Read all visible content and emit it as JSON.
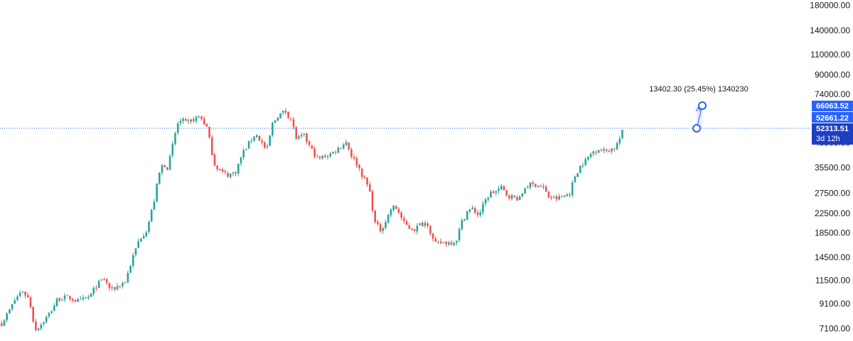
{
  "chart_data": {
    "type": "candlestick",
    "y_scale": "log",
    "ylim": [
      6500,
      190000
    ],
    "y_ticks": [
      {
        "value": 180000,
        "label": "180000.00"
      },
      {
        "value": 140000,
        "label": "140000.00"
      },
      {
        "value": 110000,
        "label": "110000.00"
      },
      {
        "value": 90000,
        "label": "90000.00"
      },
      {
        "value": 74000,
        "label": "74000.00"
      },
      {
        "value": 45500,
        "label": "45500.00"
      },
      {
        "value": 35500,
        "label": "35500.00"
      },
      {
        "value": 27500,
        "label": "27500.00"
      },
      {
        "value": 22500,
        "label": "22500.00"
      },
      {
        "value": 18500,
        "label": "18500.00"
      },
      {
        "value": 14500,
        "label": "14500.00"
      },
      {
        "value": 11500,
        "label": "11500.00"
      },
      {
        "value": 9100,
        "label": "9100.00"
      },
      {
        "value": 7100,
        "label": "7100.00"
      }
    ],
    "price_line": {
      "value": 52661.22,
      "label": "52661.22"
    },
    "current_price": {
      "value": 52313.51,
      "label": "52313.51",
      "countdown": "3d 12h"
    },
    "target_price": {
      "value": 66063.52,
      "label": "66063.52"
    },
    "measurement": {
      "text": "13402.30 (25.45%) 1340230",
      "from_value": 52661.22,
      "to_value": 66063.52
    },
    "colors": {
      "up": "#26a69a",
      "down": "#ef5350",
      "price_line": "#2962ff",
      "badge": "#2962ff",
      "badge_dark": "#1e3fbf",
      "tool": "#2962ff"
    },
    "path": [
      [
        0,
        7400
      ],
      [
        10,
        8300
      ],
      [
        20,
        9500
      ],
      [
        30,
        10400
      ],
      [
        40,
        9500
      ],
      [
        48,
        7000
      ],
      [
        58,
        7500
      ],
      [
        70,
        8400
      ],
      [
        80,
        9600
      ],
      [
        95,
        9700
      ],
      [
        110,
        9300
      ],
      [
        125,
        9800
      ],
      [
        135,
        11000
      ],
      [
        145,
        11700
      ],
      [
        155,
        10400
      ],
      [
        165,
        10900
      ],
      [
        175,
        11400
      ],
      [
        185,
        14300
      ],
      [
        195,
        17500
      ],
      [
        205,
        19000
      ],
      [
        215,
        25000
      ],
      [
        222,
        33000
      ],
      [
        228,
        37000
      ],
      [
        235,
        35500
      ],
      [
        242,
        45000
      ],
      [
        248,
        55000
      ],
      [
        255,
        57000
      ],
      [
        262,
        55000
      ],
      [
        270,
        57500
      ],
      [
        280,
        59500
      ],
      [
        290,
        53000
      ],
      [
        300,
        37000
      ],
      [
        310,
        34000
      ],
      [
        320,
        33000
      ],
      [
        330,
        34000
      ],
      [
        340,
        41000
      ],
      [
        350,
        46000
      ],
      [
        358,
        50000
      ],
      [
        366,
        46000
      ],
      [
        374,
        42000
      ],
      [
        382,
        55000
      ],
      [
        390,
        60000
      ],
      [
        400,
        62500
      ],
      [
        408,
        58000
      ],
      [
        416,
        47000
      ],
      [
        426,
        49000
      ],
      [
        436,
        43000
      ],
      [
        446,
        38500
      ],
      [
        456,
        40000
      ],
      [
        466,
        41000
      ],
      [
        476,
        43500
      ],
      [
        486,
        46000
      ],
      [
        494,
        39500
      ],
      [
        502,
        36500
      ],
      [
        510,
        32000
      ],
      [
        518,
        29000
      ],
      [
        526,
        20500
      ],
      [
        534,
        19000
      ],
      [
        542,
        21000
      ],
      [
        550,
        24000
      ],
      [
        558,
        23500
      ],
      [
        566,
        20500
      ],
      [
        574,
        19500
      ],
      [
        582,
        19200
      ],
      [
        590,
        20200
      ],
      [
        600,
        20500
      ],
      [
        610,
        16500
      ],
      [
        620,
        16800
      ],
      [
        630,
        16800
      ],
      [
        640,
        17000
      ],
      [
        648,
        20500
      ],
      [
        656,
        23000
      ],
      [
        664,
        23500
      ],
      [
        672,
        22000
      ],
      [
        680,
        25000
      ],
      [
        688,
        27500
      ],
      [
        696,
        28000
      ],
      [
        704,
        29000
      ],
      [
        712,
        27000
      ],
      [
        720,
        26500
      ],
      [
        730,
        26000
      ],
      [
        738,
        29500
      ],
      [
        746,
        30000
      ],
      [
        754,
        30000
      ],
      [
        762,
        29500
      ],
      [
        770,
        26500
      ],
      [
        780,
        26000
      ],
      [
        790,
        26500
      ],
      [
        800,
        27500
      ],
      [
        808,
        33000
      ],
      [
        816,
        36500
      ],
      [
        824,
        38500
      ],
      [
        832,
        41500
      ],
      [
        840,
        43000
      ],
      [
        848,
        42000
      ],
      [
        856,
        42500
      ],
      [
        864,
        43500
      ],
      [
        870,
        47000
      ],
      [
        876,
        52313.51
      ]
    ]
  }
}
